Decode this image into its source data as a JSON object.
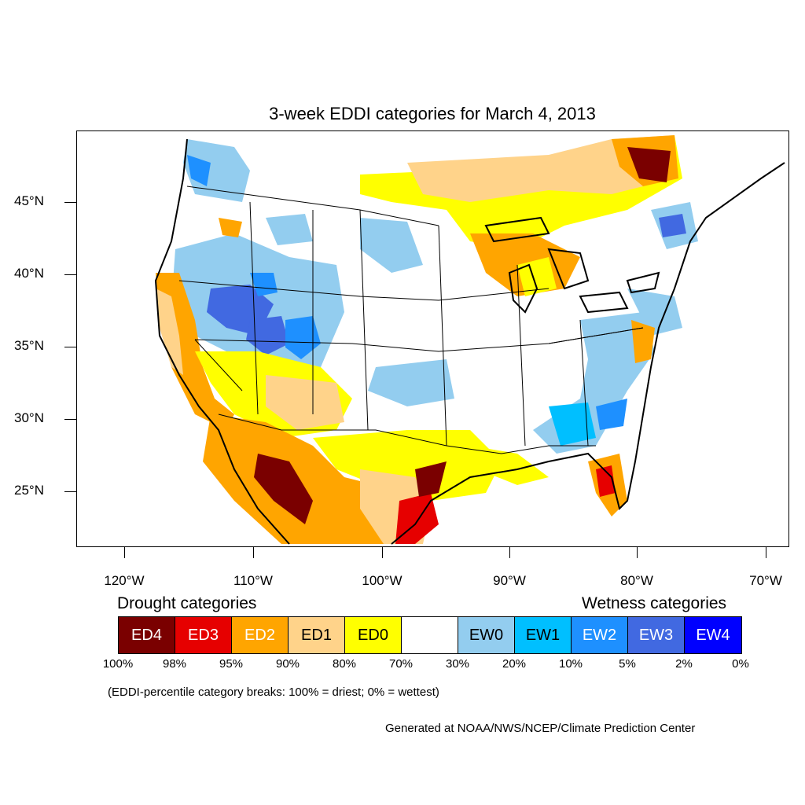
{
  "title": "3-week EDDI categories for March 4, 2013",
  "latitude_labels": [
    "45°N",
    "40°N",
    "35°N",
    "30°N",
    "25°N"
  ],
  "longitude_labels": [
    "120°W",
    "110°W",
    "100°W",
    "90°W",
    "80°W",
    "70°W"
  ],
  "legend": {
    "drought_heading": "Drought categories",
    "wetness_heading": "Wetness categories",
    "categories": [
      {
        "label": "ED4",
        "color": "#7a0000",
        "text_color": "#ffffff"
      },
      {
        "label": "ED3",
        "color": "#e60000",
        "text_color": "#ffffff"
      },
      {
        "label": "ED2",
        "color": "#ffa500",
        "text_color": "#ffffff"
      },
      {
        "label": "ED1",
        "color": "#ffd38a",
        "text_color": "#000000"
      },
      {
        "label": "ED0",
        "color": "#ffff00",
        "text_color": "#000000"
      },
      {
        "label": "",
        "color": "#ffffff",
        "text_color": "#000000"
      },
      {
        "label": "EW0",
        "color": "#93cdef",
        "text_color": "#000000"
      },
      {
        "label": "EW1",
        "color": "#00bfff",
        "text_color": "#000000"
      },
      {
        "label": "EW2",
        "color": "#1e90ff",
        "text_color": "#ffffff"
      },
      {
        "label": "EW3",
        "color": "#4169e1",
        "text_color": "#ffffff"
      },
      {
        "label": "EW4",
        "color": "#0000ff",
        "text_color": "#ffffff"
      }
    ],
    "percent_breaks": [
      "100%",
      "98%",
      "95%",
      "90%",
      "80%",
      "70%",
      "30%",
      "20%",
      "10%",
      "5%",
      "2%",
      "0%"
    ]
  },
  "note": "(EDDI-percentile category breaks: 100% = driest; 0% = wettest)",
  "credit": "Generated at NOAA/NWS/NCEP/Climate Prediction Center"
}
